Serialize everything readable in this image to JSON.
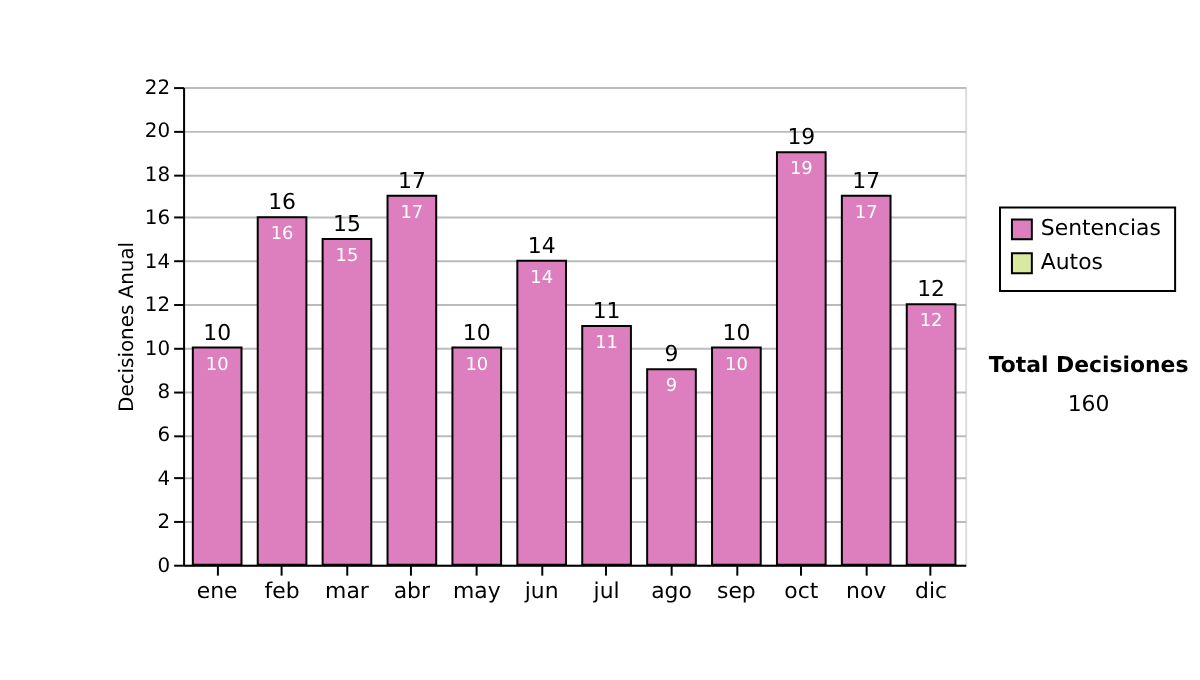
{
  "chart_data": {
    "type": "bar",
    "ylabel": "Decisiones Anual",
    "categories": [
      "ene",
      "feb",
      "mar",
      "abr",
      "may",
      "jun",
      "jul",
      "ago",
      "sep",
      "oct",
      "nov",
      "dic"
    ],
    "series": [
      {
        "name": "Sentencias",
        "color": "#dd7fbf",
        "values": [
          10,
          16,
          15,
          17,
          10,
          14,
          11,
          9,
          10,
          19,
          17,
          12
        ],
        "value_labels": [
          "10",
          "16",
          "15",
          "17",
          "10",
          "14",
          "11",
          "9",
          "10",
          "19",
          "17",
          "12"
        ]
      },
      {
        "name": "Autos",
        "color": "#d9eaa0",
        "values": [
          null,
          null,
          null,
          null,
          null,
          null,
          null,
          null,
          null,
          null,
          null,
          null
        ]
      }
    ],
    "stacked": true,
    "totals": [
      "10",
      "16",
      "15",
      "17",
      "10",
      "14",
      "11",
      "9",
      "10",
      "19",
      "17",
      "12"
    ],
    "ylim": [
      0,
      22
    ],
    "yticks": [
      0,
      2,
      4,
      6,
      8,
      10,
      12,
      14,
      16,
      18,
      20,
      22
    ],
    "grid": "y",
    "legend": "right",
    "annotations": [
      "Total Decisiones",
      "160"
    ]
  }
}
